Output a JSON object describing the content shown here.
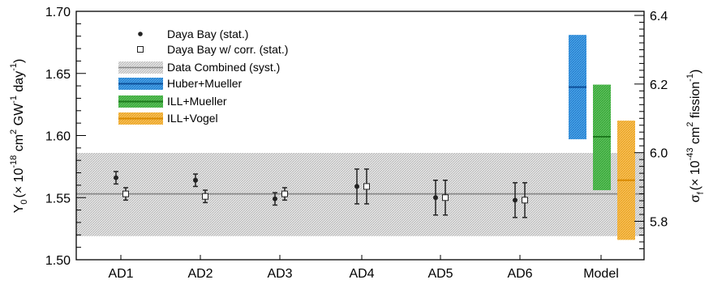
{
  "chart_data": {
    "type": "scatter",
    "left_axis": {
      "label_main": "Y",
      "label_sub": "0",
      "label_rest": "(× 10",
      "label_exp1": "-18",
      "label_unit1": " cm",
      "label_exp2": "2",
      "label_unit2": " GW",
      "label_exp3": "-1",
      "label_unit3": " day",
      "label_exp4": "-1",
      "label_close": ")",
      "ylim": [
        1.5,
        1.7
      ],
      "ticks": [
        "1.50",
        "1.55",
        "1.60",
        "1.65",
        "1.70"
      ]
    },
    "right_axis": {
      "label_main": "σ",
      "label_sub": "f",
      "label_rest": "(× 10",
      "label_exp1": "-43",
      "label_unit1": " cm",
      "label_exp2": "2",
      "label_unit2": " fission",
      "label_exp3": "-1",
      "label_close": ")",
      "ticks": [
        "5.8",
        "6.0",
        "6.2",
        "6.4"
      ],
      "tick_values": [
        5.8,
        6.0,
        6.2,
        6.4
      ]
    },
    "categories": [
      "AD1",
      "AD2",
      "AD3",
      "AD4",
      "AD5",
      "AD6",
      "Model"
    ],
    "series": [
      {
        "name": "Daya Bay (stat.)",
        "marker": "filled-circle",
        "values": [
          1.566,
          1.564,
          1.549,
          1.559,
          1.55,
          1.548
        ],
        "errors": [
          0.005,
          0.005,
          0.005,
          0.014,
          0.014,
          0.014
        ]
      },
      {
        "name": "Daya Bay w/ corr. (stat.)",
        "marker": "open-square",
        "values": [
          1.553,
          1.551,
          1.553,
          1.559,
          1.55,
          1.548
        ],
        "errors": [
          0.005,
          0.005,
          0.005,
          0.014,
          0.014,
          0.014
        ]
      }
    ],
    "combined": {
      "name": "Data Combined (syst.)",
      "value": 1.553,
      "low": 1.519,
      "high": 1.586,
      "color": "#b0b0b0"
    },
    "models": [
      {
        "name": "Huber+Mueller",
        "value": 1.639,
        "low": 1.597,
        "high": 1.681,
        "color": "#1a73c8"
      },
      {
        "name": "ILL+Mueller",
        "value": 1.599,
        "low": 1.556,
        "high": 1.641,
        "color": "#2f9e2f"
      },
      {
        "name": "ILL+Vogel",
        "value": 1.564,
        "low": 1.516,
        "high": 1.612,
        "color": "#f0a020"
      }
    ],
    "grid": false,
    "legend_position": "top-left"
  }
}
